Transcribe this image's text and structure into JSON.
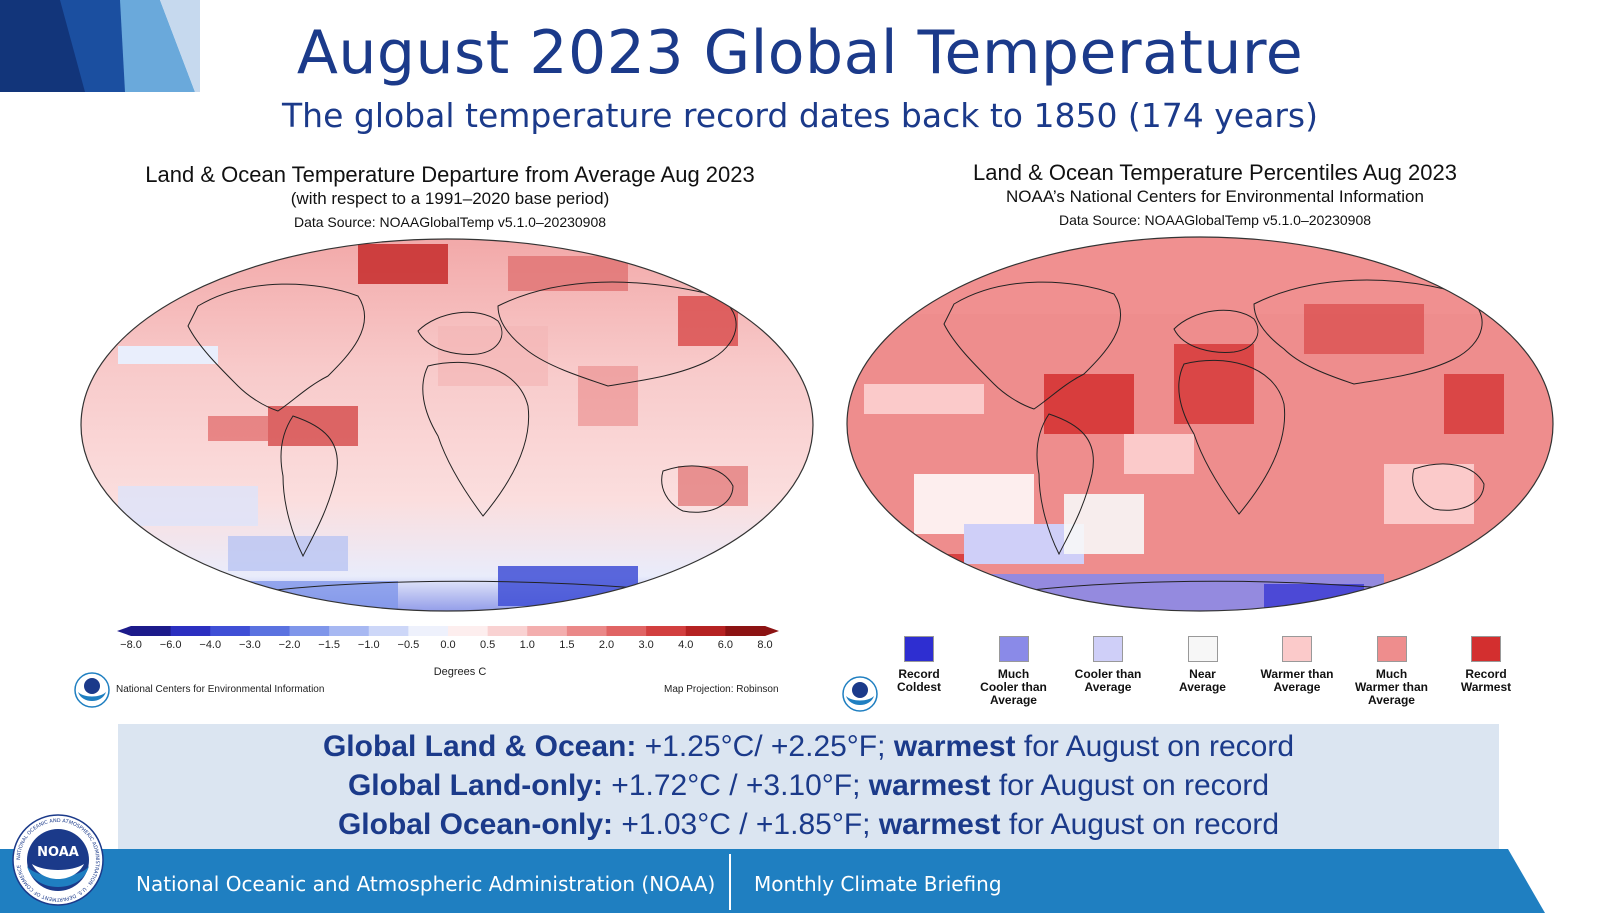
{
  "header": {
    "title": "August 2023 Global Temperature",
    "subtitle": "The global temperature record dates back to 1850 (174 years)"
  },
  "left_map": {
    "title": "Land & Ocean Temperature Departure from Average Aug 2023",
    "subtitle": "(with respect to a 1991–2020 base period)",
    "source": "Data Source: NOAAGlobalTemp v5.1.0–20230908",
    "colorbar_labels": [
      "−8.0",
      "−6.0",
      "−4.0",
      "−3.0",
      "−2.0",
      "−1.5",
      "−1.0",
      "−0.5",
      "0.0",
      "0.5",
      "1.0",
      "1.5",
      "2.0",
      "3.0",
      "4.0",
      "6.0",
      "8.0"
    ],
    "colorbar_colors": [
      "#1c1a8a",
      "#2b2fc0",
      "#3f4fd6",
      "#5a72e0",
      "#7f96ea",
      "#a7b8f2",
      "#cdd7f8",
      "#eef1fc",
      "#fdeeee",
      "#f9d2d2",
      "#f3aeae",
      "#ea8888",
      "#e06464",
      "#d23f3f",
      "#b52222",
      "#8c1313"
    ],
    "units": "Degrees C",
    "credit": "National Centers for Environmental Information",
    "projection": "Map Projection: Robinson"
  },
  "right_map": {
    "title": "Land & Ocean Temperature Percentiles Aug 2023",
    "subtitle": "NOAA’s National Centers for Environmental Information",
    "source": "Data Source: NOAAGlobalTemp v5.1.0–20230908",
    "legend": [
      {
        "label_lines": [
          "Record",
          "Coldest"
        ],
        "color": "#2e2ed1"
      },
      {
        "label_lines": [
          "Much",
          "Cooler than",
          "Average"
        ],
        "color": "#8a8ae8"
      },
      {
        "label_lines": [
          "Cooler than",
          "Average"
        ],
        "color": "#cfcff8"
      },
      {
        "label_lines": [
          "Near",
          "Average"
        ],
        "color": "#f7f7f7"
      },
      {
        "label_lines": [
          "Warmer than",
          "Average"
        ],
        "color": "#fbcaca"
      },
      {
        "label_lines": [
          "Much",
          "Warmer than",
          "Average"
        ],
        "color": "#ee8d8d"
      },
      {
        "label_lines": [
          "Record",
          "Warmest"
        ],
        "color": "#d32f2f"
      }
    ]
  },
  "stats": [
    {
      "label": "Global Land & Ocean:",
      "value": " +1.25°C/ +2.25°F; ",
      "rank": "warmest",
      "tail": " for August on record"
    },
    {
      "label": "Global Land-only:",
      "value": " +1.72°C / +3.10°F; ",
      "rank": "warmest",
      "tail": " for August on record"
    },
    {
      "label": "Global Ocean-only:",
      "value": " +1.03°C / +1.85°F; ",
      "rank": "warmest",
      "tail": " for August on record"
    }
  ],
  "footer": {
    "org": "National Oceanic and Atmospheric Administration (NOAA)",
    "briefing": "Monthly Climate Briefing"
  },
  "logo": {
    "text": "NOAA",
    "ring_text": "NATIONAL OCEANIC AND ATMOSPHERIC ADMINISTRATION · U.S. DEPARTMENT OF COMMERCE"
  },
  "colors": {
    "title_blue": "#1b3a8a",
    "footer_blue": "#1f7fc1",
    "stats_bg": "#dbe5f1"
  }
}
